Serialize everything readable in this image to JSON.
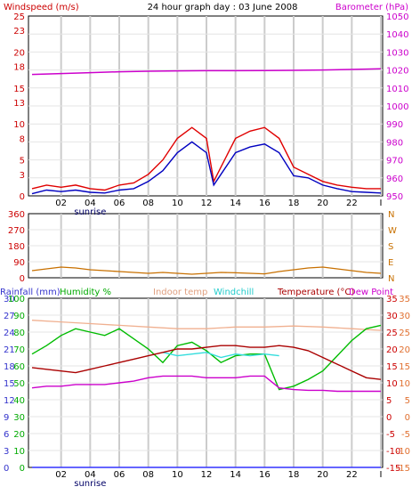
{
  "header": {
    "title": "24 hour graph day : 03 June 2008",
    "left_label": "Windspeed (m/s)",
    "right_label": "Barometer (hPa)"
  },
  "colors": {
    "windspeed": "#e00000",
    "windavg": "#0000c0",
    "barometer": "#cc00cc",
    "winddir": "#c87000",
    "humidity": "#00bb00",
    "indoor": "#f0b090",
    "windchill": "#33dddd",
    "temperature": "#aa0000",
    "dewpoint": "#cc00cc",
    "rain": "#3333ff",
    "grid": "#cccccc",
    "axis_blue": "#3333cc",
    "axis_red": "#cc0000"
  },
  "chart_data": [
    {
      "type": "line",
      "name": "wind-barometer",
      "title": "24 hour graph day : 03 June 2008",
      "x_ticks": [
        "02",
        "04",
        "06",
        "08",
        "10",
        "12",
        "14",
        "16",
        "18",
        "20",
        "22",
        "I"
      ],
      "sunrise_label": "sunrise",
      "y_left": {
        "label": "Windspeed (m/s)",
        "ticks": [
          0,
          3,
          5,
          8,
          10,
          13,
          15,
          18,
          20,
          23,
          25
        ],
        "range": [
          0,
          25
        ]
      },
      "y_right": {
        "label": "Barometer (hPa)",
        "ticks": [
          950,
          960,
          970,
          980,
          990,
          1000,
          1010,
          1020,
          1030,
          1040,
          1050
        ],
        "range": [
          950,
          1050
        ]
      },
      "series": [
        {
          "name": "Windspeed (m/s)",
          "x": [
            0,
            1,
            2,
            3,
            4,
            5,
            6,
            7,
            8,
            9,
            10,
            11,
            12,
            12.5,
            13,
            14,
            15,
            16,
            17,
            18,
            19,
            20,
            21,
            22,
            23,
            24
          ],
          "values": [
            1,
            1.5,
            1.2,
            1.5,
            1.0,
            0.8,
            1.5,
            1.8,
            3,
            5,
            8,
            9.5,
            8,
            2,
            4,
            8,
            9,
            9.5,
            8,
            4,
            3,
            2,
            1.5,
            1.2,
            1,
            1
          ]
        },
        {
          "name": "Average windspeed",
          "x": [
            0,
            1,
            2,
            3,
            4,
            5,
            6,
            7,
            8,
            9,
            10,
            11,
            12,
            12.5,
            13,
            14,
            15,
            16,
            17,
            18,
            19,
            20,
            21,
            22,
            23,
            24
          ],
          "values": [
            0.3,
            0.8,
            0.6,
            0.8,
            0.5,
            0.4,
            0.8,
            1.0,
            2,
            3.5,
            6,
            7.5,
            6,
            1.5,
            3,
            6,
            6.8,
            7.2,
            6,
            2.8,
            2.5,
            1.5,
            1,
            0.6,
            0.5,
            0.4
          ]
        },
        {
          "name": "Barometer (hPa)",
          "x": [
            0,
            2,
            4,
            6,
            8,
            10,
            12,
            14,
            16,
            18,
            20,
            22,
            24
          ],
          "values": [
            1017.5,
            1018,
            1018.5,
            1019,
            1019.3,
            1019.5,
            1019.6,
            1019.6,
            1019.7,
            1019.8,
            1020,
            1020.3,
            1020.7
          ]
        }
      ]
    },
    {
      "type": "line",
      "name": "wind-direction",
      "y_left": {
        "ticks": [
          0,
          90,
          180,
          270,
          360
        ],
        "range": [
          0,
          360
        ]
      },
      "y_right": {
        "ticks": [
          "N",
          "E",
          "S",
          "W",
          "N"
        ]
      },
      "series": [
        {
          "name": "Wind direction",
          "x": [
            0,
            1,
            2,
            3,
            4,
            5,
            6,
            7,
            8,
            9,
            10,
            11,
            12,
            13,
            14,
            15,
            16,
            17,
            18,
            19,
            20,
            21,
            22,
            23,
            24
          ],
          "values": [
            40,
            50,
            60,
            55,
            45,
            40,
            35,
            30,
            25,
            30,
            25,
            20,
            25,
            30,
            28,
            25,
            22,
            35,
            45,
            55,
            60,
            50,
            40,
            30,
            25
          ]
        }
      ]
    },
    {
      "type": "line",
      "name": "temp-humidity",
      "legend": [
        "Rainfall (mm)",
        "Humidity %",
        "Indoor temp",
        "Windchill",
        "Temperature (°C)",
        "Dew Point"
      ],
      "y_left_rain": {
        "label": "Rainfall (mm)",
        "ticks": [
          0,
          3,
          6,
          9,
          12,
          15,
          18,
          21,
          24,
          27,
          30
        ],
        "range": [
          0,
          30
        ]
      },
      "y_left_humidity": {
        "label": "Humidity %",
        "ticks": [
          0,
          10,
          20,
          30,
          40,
          50,
          60,
          70,
          80,
          90,
          100
        ],
        "range": [
          0,
          100
        ]
      },
      "y_right_temp": {
        "label": "Temperature (°C)",
        "ticks": [
          -15,
          -10,
          -5,
          0,
          5,
          10,
          15,
          20,
          25,
          30,
          35
        ],
        "range": [
          -15,
          35
        ]
      },
      "series": [
        {
          "name": "Humidity %",
          "x": [
            0,
            1,
            2,
            3,
            4,
            5,
            6,
            7,
            8,
            9,
            10,
            11,
            12,
            13,
            14,
            15,
            16,
            17,
            18,
            19,
            20,
            21,
            22,
            23,
            24
          ],
          "values": [
            67,
            72,
            78,
            82,
            80,
            78,
            82,
            76,
            70,
            62,
            72,
            74,
            69,
            62,
            66,
            67,
            67,
            46,
            48,
            52,
            57,
            66,
            75,
            82,
            84
          ]
        },
        {
          "name": "Indoor temp",
          "x": [
            0,
            2,
            4,
            6,
            8,
            10,
            12,
            14,
            16,
            18,
            20,
            22,
            24
          ],
          "values": [
            28.5,
            28,
            27.5,
            27,
            26.5,
            26,
            26,
            26.5,
            26.5,
            26.8,
            26.5,
            26,
            25.5
          ]
        },
        {
          "name": "Windchill",
          "x": [
            9,
            10,
            11,
            12,
            13,
            14,
            15,
            16,
            17
          ],
          "values": [
            19,
            18,
            18.5,
            19,
            17.5,
            18.5,
            18,
            18.5,
            18
          ]
        },
        {
          "name": "Temperature (°C)",
          "x": [
            0,
            1,
            2,
            3,
            4,
            5,
            6,
            7,
            8,
            9,
            10,
            11,
            12,
            13,
            14,
            15,
            16,
            17,
            18,
            19,
            20,
            21,
            22,
            23,
            24
          ],
          "values": [
            14.5,
            14,
            13.5,
            13,
            14,
            15,
            16,
            17,
            18,
            19,
            20,
            20,
            20.5,
            21,
            21,
            20.5,
            20.5,
            21,
            20.5,
            19.5,
            17.5,
            15.5,
            13.5,
            11.5,
            11
          ]
        },
        {
          "name": "Dew Point",
          "x": [
            0,
            1,
            2,
            3,
            4,
            5,
            6,
            7,
            8,
            9,
            10,
            11,
            12,
            13,
            14,
            15,
            16,
            17,
            18,
            19,
            20,
            21,
            22,
            23,
            24
          ],
          "values": [
            8.5,
            9,
            9,
            9.5,
            9.5,
            9.5,
            10,
            10.5,
            11.5,
            12,
            12,
            12,
            11.5,
            11.5,
            11.5,
            12,
            12,
            8.5,
            8,
            7.8,
            7.8,
            7.5,
            7.5,
            7.5,
            7.5
          ]
        },
        {
          "name": "Rainfall (mm)",
          "x": [
            0,
            24
          ],
          "values": [
            0,
            0
          ]
        }
      ]
    }
  ]
}
